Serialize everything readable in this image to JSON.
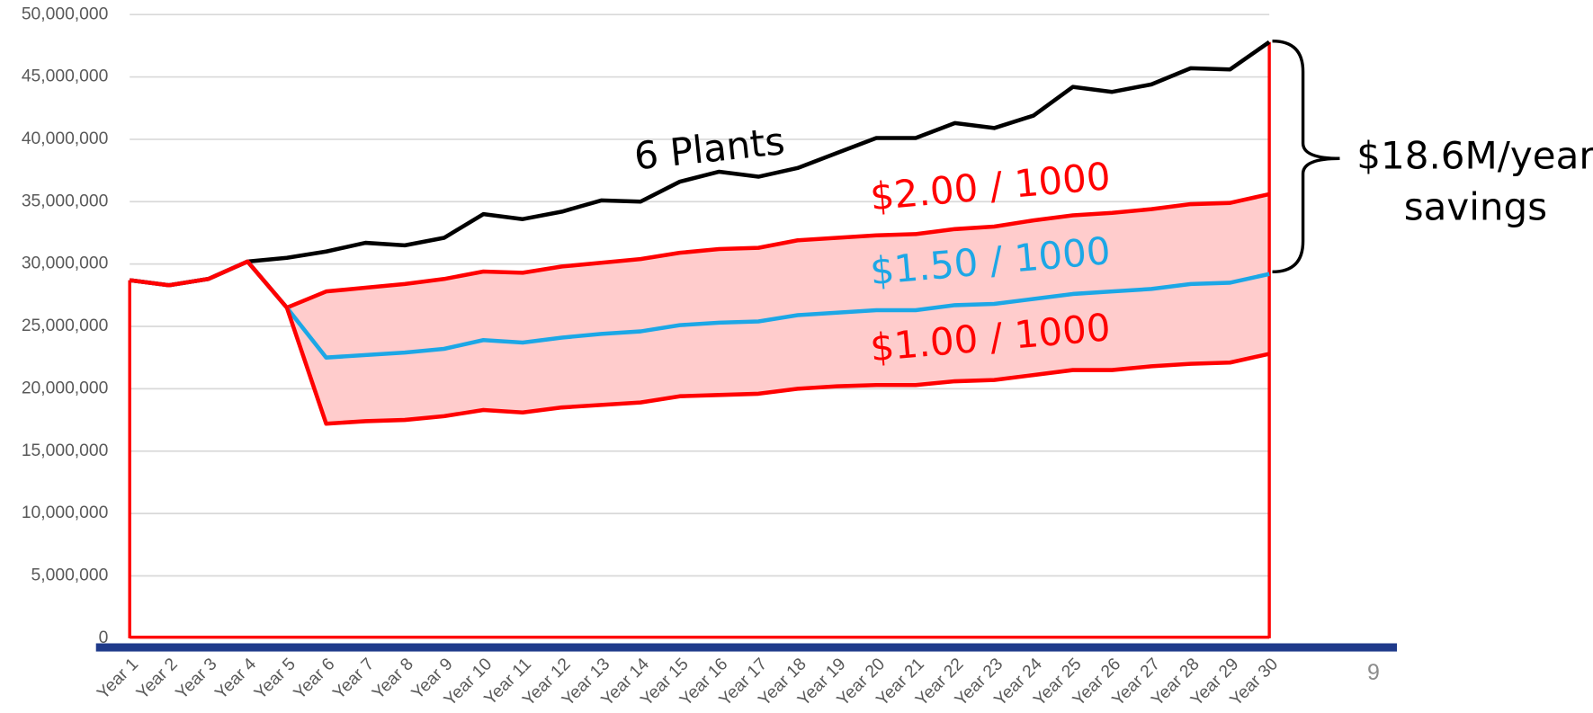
{
  "chart_data": {
    "type": "line",
    "categories": [
      "Year 1",
      "Year 2",
      "Year 3",
      "Year 4",
      "Year 5",
      "Year 6",
      "Year 7",
      "Year 8",
      "Year 9",
      "Year 10",
      "Year 11",
      "Year 12",
      "Year 13",
      "Year 14",
      "Year 15",
      "Year 16",
      "Year 17",
      "Year 18",
      "Year 19",
      "Year 20",
      "Year 21",
      "Year 22",
      "Year 23",
      "Year 24",
      "Year 25",
      "Year 26",
      "Year 27",
      "Year 28",
      "Year 29",
      "Year 30"
    ],
    "series": [
      {
        "name": "6 Plants",
        "color": "#000000",
        "values": [
          28700000,
          28300000,
          28800000,
          30200000,
          30500000,
          31000000,
          31700000,
          31500000,
          32100000,
          34000000,
          33600000,
          34200000,
          35100000,
          35000000,
          36600000,
          37400000,
          37000000,
          37700000,
          38900000,
          40100000,
          40100000,
          41300000,
          40900000,
          41900000,
          44200000,
          43800000,
          44400000,
          45700000,
          45600000,
          47800000
        ]
      },
      {
        "name": "$2.00 / 1000",
        "color": "#ff0000",
        "values": [
          28700000,
          28300000,
          28800000,
          30200000,
          26500000,
          27800000,
          28100000,
          28400000,
          28800000,
          29400000,
          29300000,
          29800000,
          30100000,
          30400000,
          30900000,
          31200000,
          31300000,
          31900000,
          32100000,
          32300000,
          32400000,
          32800000,
          33000000,
          33500000,
          33900000,
          34100000,
          34400000,
          34800000,
          34900000,
          35600000
        ]
      },
      {
        "name": "$1.50 / 1000",
        "color": "#1ca7e6",
        "values": [
          28700000,
          28300000,
          28800000,
          30200000,
          26500000,
          22500000,
          22700000,
          22900000,
          23200000,
          23900000,
          23700000,
          24100000,
          24400000,
          24600000,
          25100000,
          25300000,
          25400000,
          25900000,
          26100000,
          26300000,
          26300000,
          26700000,
          26800000,
          27200000,
          27600000,
          27800000,
          28000000,
          28400000,
          28500000,
          29200000
        ]
      },
      {
        "name": "$1.00 / 1000",
        "color": "#ff0000",
        "values": [
          28700000,
          28300000,
          28800000,
          30200000,
          26500000,
          17200000,
          17400000,
          17500000,
          17800000,
          18300000,
          18100000,
          18500000,
          18700000,
          18900000,
          19400000,
          19500000,
          19600000,
          20000000,
          20200000,
          20300000,
          20300000,
          20600000,
          20700000,
          21100000,
          21500000,
          21500000,
          21800000,
          22000000,
          22100000,
          22800000
        ]
      }
    ],
    "band_color": "#ffcccc",
    "ylim": [
      0,
      50000000
    ],
    "yticks": [
      0,
      {
        "value": 5000000,
        "label": "5,000,000"
      },
      {
        "value": 10000000,
        "label": "10,000,000"
      },
      {
        "value": 15000000,
        "label": "15,000,000"
      },
      {
        "value": 20000000,
        "label": "20,000,000"
      },
      {
        "value": 25000000,
        "label": "25,000,000"
      },
      {
        "value": 30000000,
        "label": "30,000,000"
      },
      {
        "value": 35000000,
        "label": "35,000,000"
      },
      {
        "value": 40000000,
        "label": "40,000,000"
      },
      {
        "value": 45000000,
        "label": "45,000,000"
      },
      {
        "value": 50000000,
        "label": "50,000,000"
      }
    ],
    "grid": true,
    "annotation": [
      "$18.6M/year",
      "savings"
    ],
    "page_number": "9"
  }
}
